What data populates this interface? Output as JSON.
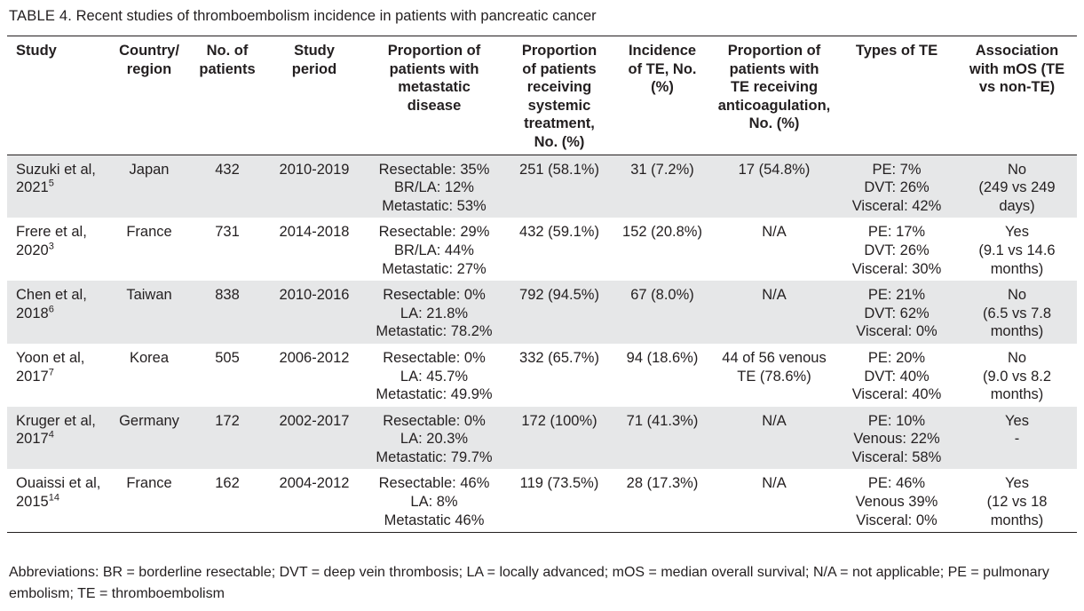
{
  "table": {
    "caption_label": "TABLE 4.",
    "caption_text": "Recent studies of thromboembolism incidence in patients with pancreatic cancer",
    "headers": [
      [
        "Study"
      ],
      [
        "Country/",
        "region"
      ],
      [
        "No. of",
        "patients"
      ],
      [
        "Study",
        "period"
      ],
      [
        "Proportion of",
        "patients with",
        "metastatic",
        "disease"
      ],
      [
        "Proportion",
        "of patients",
        "receiving",
        "systemic",
        "treatment,",
        "No. (%)"
      ],
      [
        "Incidence",
        "of TE, No.",
        "(%)"
      ],
      [
        "Proportion of",
        "patients with",
        "TE receiving",
        "anticoagulation,",
        "No. (%)"
      ],
      [
        "Types of TE"
      ],
      [
        "Association",
        "with mOS (TE",
        "vs non-TE)"
      ]
    ],
    "rows": [
      {
        "study": [
          "Suzuki et al,",
          "2021"
        ],
        "ref": "5",
        "country": [
          "Japan"
        ],
        "patients": [
          "432"
        ],
        "period": [
          "2010-2019"
        ],
        "metastatic": [
          "Resectable: 35%",
          "BR/LA: 12%",
          "Metastatic: 53%"
        ],
        "systemic": [
          "251 (58.1%)"
        ],
        "incidence": [
          "31 (7.2%)"
        ],
        "anticoag": [
          "17 (54.8%)"
        ],
        "types": [
          "PE: 7%",
          "DVT: 26%",
          "Visceral: 42%"
        ],
        "mos": [
          "No",
          "(249 vs 249",
          "days)"
        ]
      },
      {
        "study": [
          "Frere et al,",
          "2020"
        ],
        "ref": "3",
        "country": [
          "France"
        ],
        "patients": [
          "731"
        ],
        "period": [
          "2014-2018"
        ],
        "metastatic": [
          "Resectable: 29%",
          "BR/LA: 44%",
          "Metastatic: 27%"
        ],
        "systemic": [
          "432 (59.1%)"
        ],
        "incidence": [
          "152 (20.8%)"
        ],
        "anticoag": [
          "N/A"
        ],
        "types": [
          "PE: 17%",
          "DVT: 26%",
          "Visceral: 30%"
        ],
        "mos": [
          "Yes",
          "(9.1 vs 14.6",
          "months)"
        ]
      },
      {
        "study": [
          "Chen et al,",
          "2018"
        ],
        "ref": "6",
        "country": [
          "Taiwan"
        ],
        "patients": [
          "838"
        ],
        "period": [
          "2010-2016"
        ],
        "metastatic": [
          "Resectable: 0%",
          "LA: 21.8%",
          "Metastatic: 78.2%"
        ],
        "systemic": [
          "792 (94.5%)"
        ],
        "incidence": [
          "67 (8.0%)"
        ],
        "anticoag": [
          "N/A"
        ],
        "types": [
          "PE: 21%",
          "DVT: 62%",
          "Visceral: 0%"
        ],
        "mos": [
          "No",
          "(6.5 vs 7.8",
          "months)"
        ]
      },
      {
        "study": [
          "Yoon et al,",
          "2017"
        ],
        "ref": "7",
        "country": [
          "Korea"
        ],
        "patients": [
          "505"
        ],
        "period": [
          "2006-2012"
        ],
        "metastatic": [
          "Resectable: 0%",
          "LA: 45.7%",
          "Metastatic: 49.9%"
        ],
        "systemic": [
          "332 (65.7%)"
        ],
        "incidence": [
          "94 (18.6%)"
        ],
        "anticoag": [
          "44 of 56 venous",
          "TE (78.6%)"
        ],
        "types": [
          "PE: 20%",
          "DVT: 40%",
          "Visceral: 40%"
        ],
        "mos": [
          "No",
          "(9.0 vs 8.2",
          "months)"
        ]
      },
      {
        "study": [
          "Kruger et al,",
          "2017"
        ],
        "ref": "4",
        "country": [
          "Germany"
        ],
        "patients": [
          "172"
        ],
        "period": [
          "2002-2017"
        ],
        "metastatic": [
          "Resectable: 0%",
          "LA: 20.3%",
          "Metastatic: 79.7%"
        ],
        "systemic": [
          "172 (100%)"
        ],
        "incidence": [
          "71 (41.3%)"
        ],
        "anticoag": [
          "N/A"
        ],
        "types": [
          "PE: 10%",
          "Venous: 22%",
          "Visceral: 58%"
        ],
        "mos": [
          "Yes",
          "-"
        ]
      },
      {
        "study": [
          "Ouaissi et al,",
          "2015"
        ],
        "ref": "14",
        "country": [
          "France"
        ],
        "patients": [
          "162"
        ],
        "period": [
          "2004-2012"
        ],
        "metastatic": [
          "Resectable: 46%",
          "LA: 8%",
          "Metastatic 46%"
        ],
        "systemic": [
          "119 (73.5%)"
        ],
        "incidence": [
          "28 (17.3%)"
        ],
        "anticoag": [
          "N/A"
        ],
        "types": [
          "PE: 46%",
          "Venous 39%",
          "Visceral: 0%"
        ],
        "mos": [
          "Yes",
          "(12 vs 18",
          "months)"
        ]
      }
    ],
    "footnote": "Abbreviations: BR = borderline resectable; DVT = deep vein thrombosis; LA = locally advanced; mOS = median overall survival; N/A = not applicable; PE = pulmonary embolism; TE = thromboembolism"
  }
}
